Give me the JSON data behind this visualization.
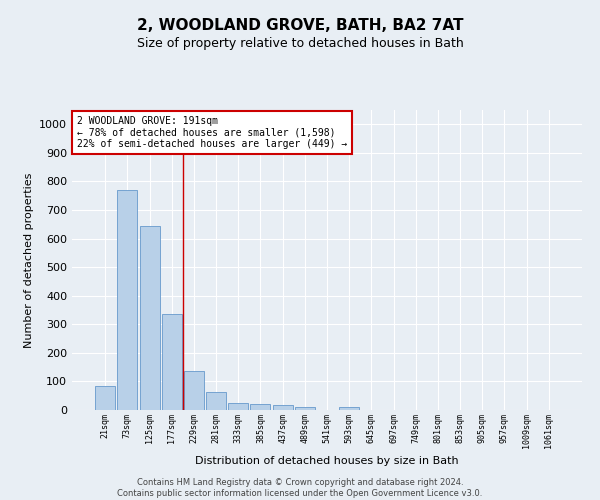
{
  "title": "2, WOODLAND GROVE, BATH, BA2 7AT",
  "subtitle": "Size of property relative to detached houses in Bath",
  "xlabel": "Distribution of detached houses by size in Bath",
  "ylabel": "Number of detached properties",
  "categories": [
    "21sqm",
    "73sqm",
    "125sqm",
    "177sqm",
    "229sqm",
    "281sqm",
    "333sqm",
    "385sqm",
    "437sqm",
    "489sqm",
    "541sqm",
    "593sqm",
    "645sqm",
    "697sqm",
    "749sqm",
    "801sqm",
    "853sqm",
    "905sqm",
    "957sqm",
    "1009sqm",
    "1061sqm"
  ],
  "values": [
    85,
    770,
    645,
    335,
    135,
    63,
    25,
    22,
    18,
    10,
    0,
    12,
    0,
    0,
    0,
    0,
    0,
    0,
    0,
    0,
    0
  ],
  "bar_color": "#b8d0e8",
  "bar_edge_color": "#6699cc",
  "vertical_line_x": 3.5,
  "annotation_line1": "2 WOODLAND GROVE: 191sqm",
  "annotation_line2": "← 78% of detached houses are smaller (1,598)",
  "annotation_line3": "22% of semi-detached houses are larger (449) →",
  "annotation_box_color": "#ffffff",
  "annotation_box_edge": "#cc0000",
  "vline_color": "#cc0000",
  "footer_line1": "Contains HM Land Registry data © Crown copyright and database right 2024.",
  "footer_line2": "Contains public sector information licensed under the Open Government Licence v3.0.",
  "ylim": [
    0,
    1050
  ],
  "yticks": [
    0,
    100,
    200,
    300,
    400,
    500,
    600,
    700,
    800,
    900,
    1000
  ],
  "background_color": "#e8eef4",
  "plot_bg_color": "#e8eef4",
  "grid_color": "#ffffff",
  "title_fontsize": 11,
  "subtitle_fontsize": 9,
  "ylabel_fontsize": 8,
  "xlabel_fontsize": 8,
  "ytick_fontsize": 8,
  "xtick_fontsize": 6,
  "annotation_fontsize": 7,
  "footer_fontsize": 6
}
